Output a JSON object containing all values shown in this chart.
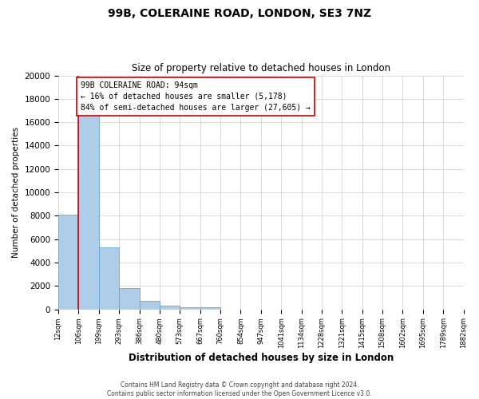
{
  "title": "99B, COLERAINE ROAD, LONDON, SE3 7NZ",
  "subtitle": "Size of property relative to detached houses in London",
  "xlabel": "Distribution of detached houses by size in London",
  "ylabel": "Number of detached properties",
  "bar_color": "#aecde8",
  "bar_edge_color": "#5b9bd5",
  "bar_heights": [
    8100,
    16600,
    5300,
    1800,
    750,
    300,
    200,
    150,
    0,
    0,
    0,
    0,
    0,
    0,
    0,
    0,
    0,
    0,
    0,
    0
  ],
  "bin_labels": [
    "12sqm",
    "106sqm",
    "199sqm",
    "293sqm",
    "386sqm",
    "480sqm",
    "573sqm",
    "667sqm",
    "760sqm",
    "854sqm",
    "947sqm",
    "1041sqm",
    "1134sqm",
    "1228sqm",
    "1321sqm",
    "1415sqm",
    "1508sqm",
    "1602sqm",
    "1695sqm",
    "1789sqm",
    "1882sqm"
  ],
  "ylim": [
    0,
    20000
  ],
  "yticks": [
    0,
    2000,
    4000,
    6000,
    8000,
    10000,
    12000,
    14000,
    16000,
    18000,
    20000
  ],
  "property_line_x": 1.0,
  "property_line_color": "#cc0000",
  "annotation_text": "99B COLERAINE ROAD: 94sqm\n← 16% of detached houses are smaller (5,178)\n84% of semi-detached houses are larger (27,605) →",
  "annotation_box_color": "#ffffff",
  "annotation_box_edge_color": "#cc0000",
  "footer_line1": "Contains HM Land Registry data © Crown copyright and database right 2024.",
  "footer_line2": "Contains public sector information licensed under the Open Government Licence v3.0.",
  "background_color": "#ffffff",
  "grid_color": "#cccccc",
  "title_fontsize": 10,
  "subtitle_fontsize": 8.5,
  "ylabel_fontsize": 7.5,
  "xlabel_fontsize": 8.5,
  "ytick_fontsize": 7.5,
  "xtick_fontsize": 6,
  "footer_fontsize": 5.5,
  "annotation_fontsize": 7
}
